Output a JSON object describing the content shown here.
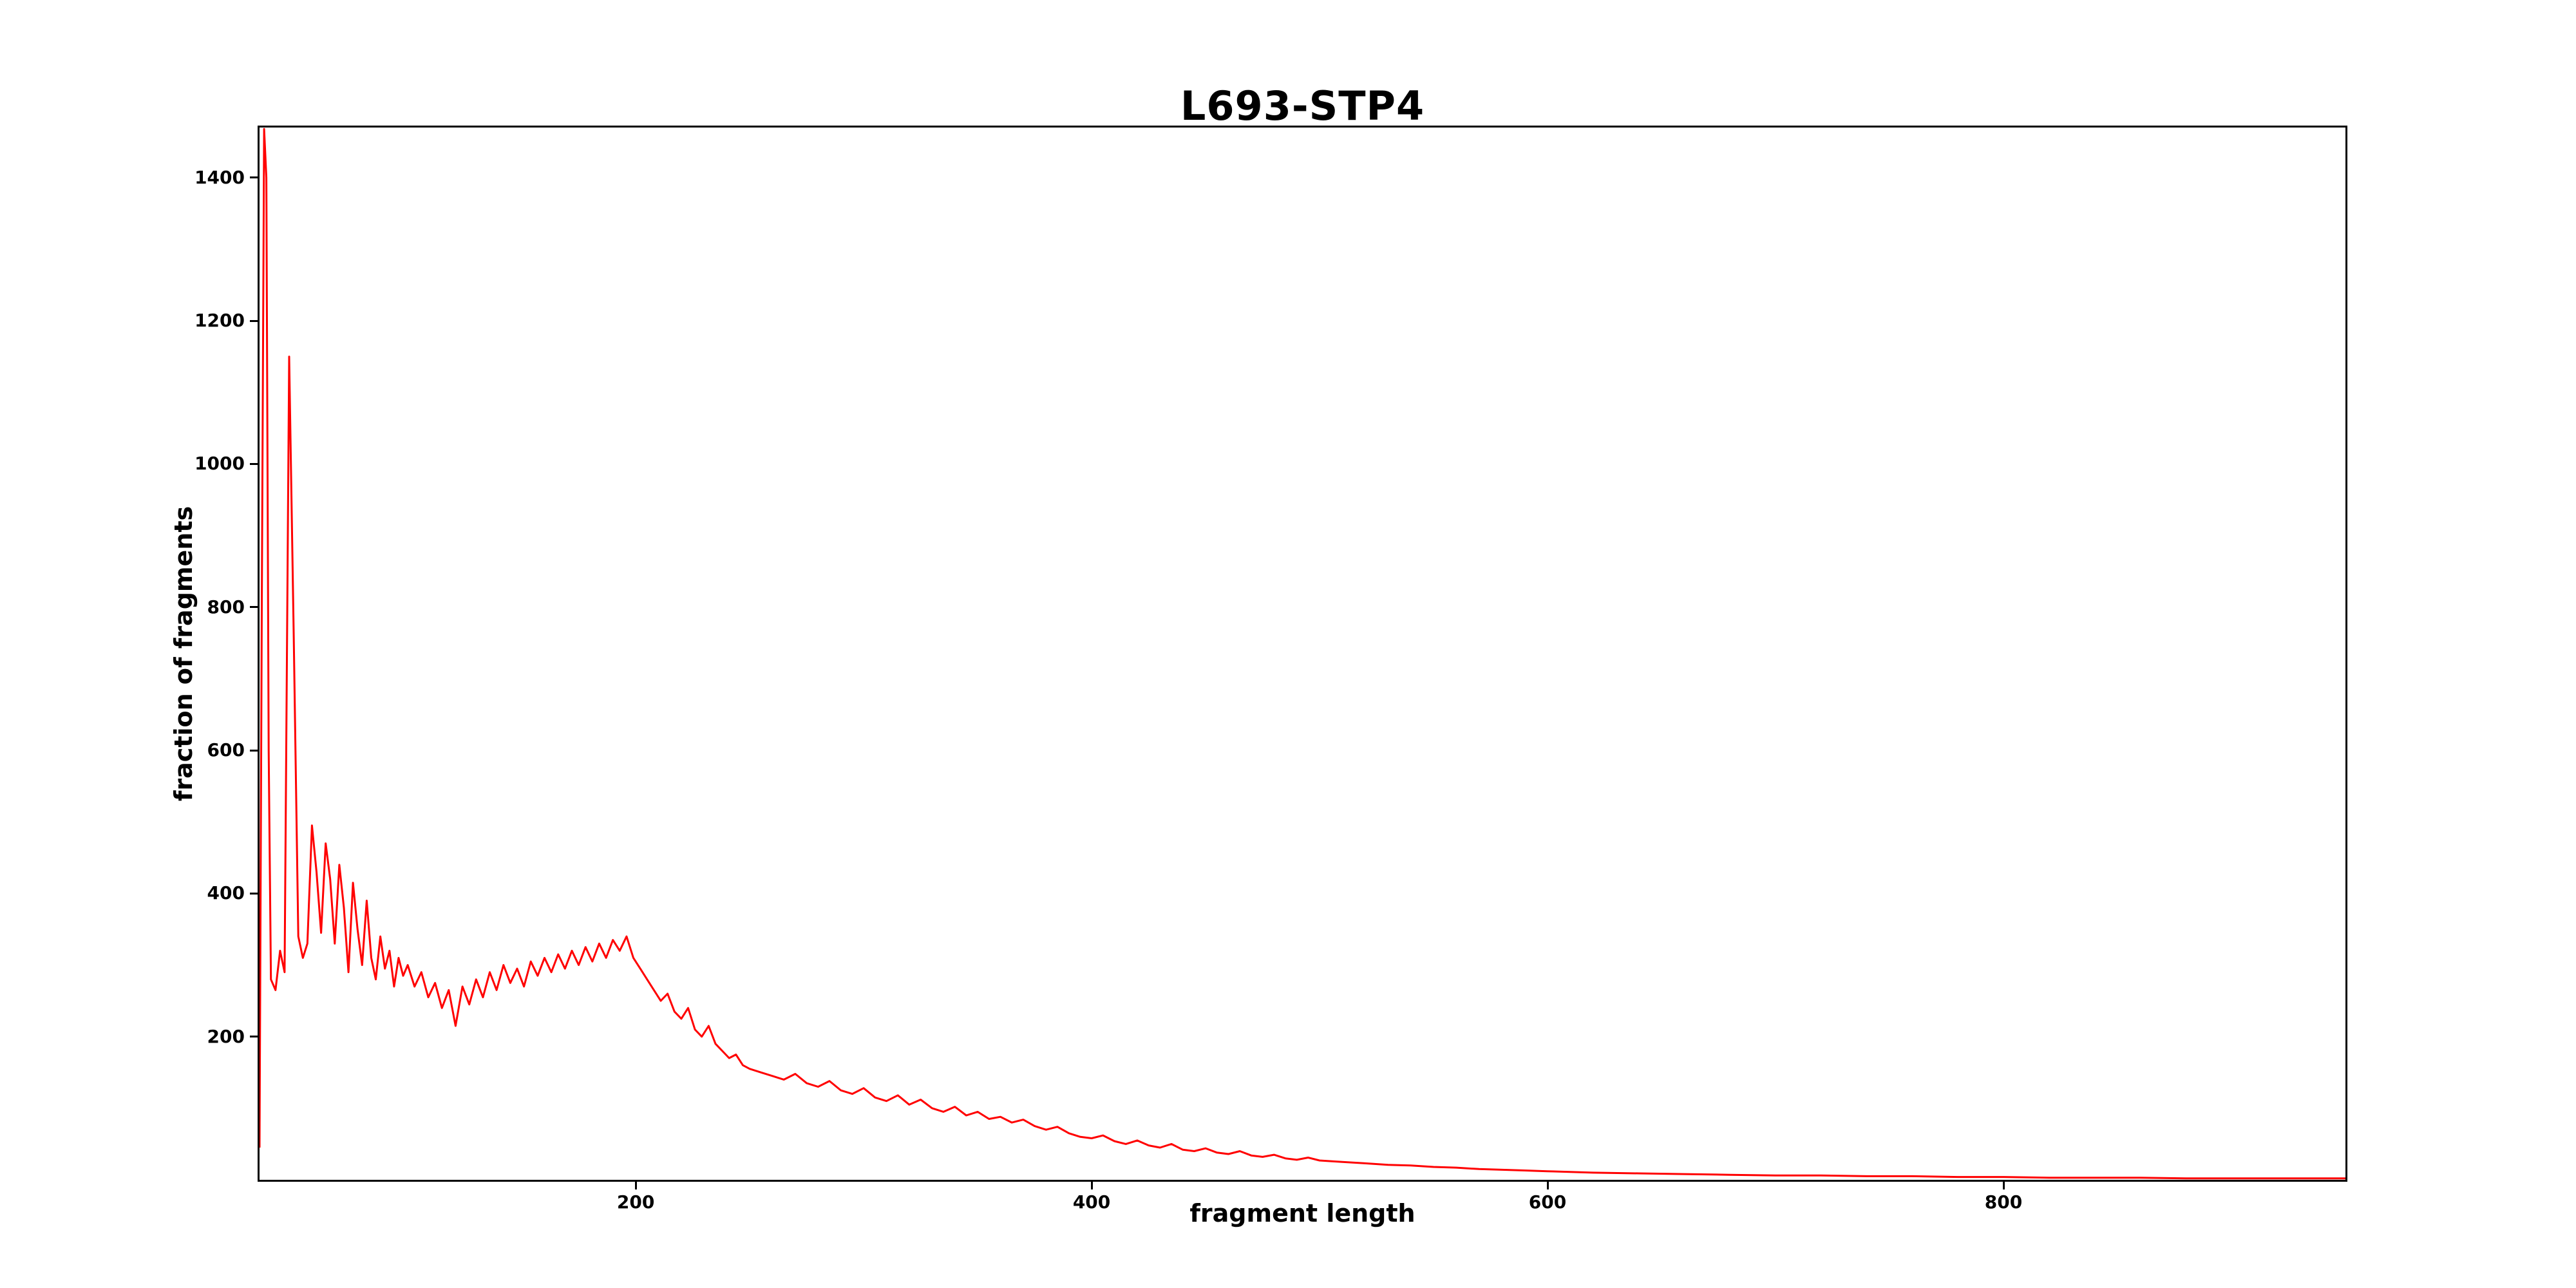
{
  "chart_data": {
    "type": "line",
    "title": "L693-STP4",
    "xlabel": "fragment length",
    "ylabel": "fraction of fragments",
    "xlim": [
      35,
      950
    ],
    "ylim": [
      0,
      1470
    ],
    "xticks": [
      200,
      400,
      600,
      800
    ],
    "yticks": [
      200,
      400,
      600,
      800,
      1000,
      1200,
      1400
    ],
    "grid": false,
    "legend": null,
    "line_color": "#ff0000",
    "points": [
      [
        35,
        45
      ],
      [
        36,
        800
      ],
      [
        37,
        1468
      ],
      [
        38,
        1400
      ],
      [
        39,
        600
      ],
      [
        40,
        280
      ],
      [
        42,
        265
      ],
      [
        44,
        320
      ],
      [
        46,
        290
      ],
      [
        48,
        1150
      ],
      [
        50,
        760
      ],
      [
        52,
        340
      ],
      [
        54,
        310
      ],
      [
        56,
        330
      ],
      [
        58,
        495
      ],
      [
        60,
        430
      ],
      [
        62,
        345
      ],
      [
        64,
        470
      ],
      [
        66,
        420
      ],
      [
        68,
        330
      ],
      [
        70,
        440
      ],
      [
        72,
        380
      ],
      [
        74,
        290
      ],
      [
        76,
        415
      ],
      [
        78,
        350
      ],
      [
        80,
        300
      ],
      [
        82,
        390
      ],
      [
        84,
        310
      ],
      [
        86,
        280
      ],
      [
        88,
        340
      ],
      [
        90,
        295
      ],
      [
        92,
        320
      ],
      [
        94,
        270
      ],
      [
        96,
        310
      ],
      [
        98,
        285
      ],
      [
        100,
        300
      ],
      [
        103,
        270
      ],
      [
        106,
        290
      ],
      [
        109,
        255
      ],
      [
        112,
        275
      ],
      [
        115,
        240
      ],
      [
        118,
        265
      ],
      [
        121,
        215
      ],
      [
        124,
        270
      ],
      [
        127,
        245
      ],
      [
        130,
        280
      ],
      [
        133,
        255
      ],
      [
        136,
        290
      ],
      [
        139,
        265
      ],
      [
        142,
        300
      ],
      [
        145,
        275
      ],
      [
        148,
        295
      ],
      [
        151,
        270
      ],
      [
        154,
        305
      ],
      [
        157,
        285
      ],
      [
        160,
        310
      ],
      [
        163,
        290
      ],
      [
        166,
        315
      ],
      [
        169,
        295
      ],
      [
        172,
        320
      ],
      [
        175,
        300
      ],
      [
        178,
        325
      ],
      [
        181,
        305
      ],
      [
        184,
        330
      ],
      [
        187,
        310
      ],
      [
        190,
        335
      ],
      [
        193,
        320
      ],
      [
        196,
        340
      ],
      [
        199,
        310
      ],
      [
        202,
        295
      ],
      [
        205,
        280
      ],
      [
        208,
        265
      ],
      [
        211,
        250
      ],
      [
        214,
        260
      ],
      [
        217,
        235
      ],
      [
        220,
        225
      ],
      [
        223,
        240
      ],
      [
        226,
        210
      ],
      [
        229,
        200
      ],
      [
        232,
        215
      ],
      [
        235,
        190
      ],
      [
        238,
        180
      ],
      [
        241,
        170
      ],
      [
        244,
        175
      ],
      [
        247,
        160
      ],
      [
        250,
        155
      ],
      [
        255,
        150
      ],
      [
        260,
        145
      ],
      [
        265,
        140
      ],
      [
        270,
        148
      ],
      [
        275,
        135
      ],
      [
        280,
        130
      ],
      [
        285,
        138
      ],
      [
        290,
        125
      ],
      [
        295,
        120
      ],
      [
        300,
        128
      ],
      [
        305,
        115
      ],
      [
        310,
        110
      ],
      [
        315,
        118
      ],
      [
        320,
        105
      ],
      [
        325,
        112
      ],
      [
        330,
        100
      ],
      [
        335,
        95
      ],
      [
        340,
        102
      ],
      [
        345,
        90
      ],
      [
        350,
        95
      ],
      [
        355,
        85
      ],
      [
        360,
        88
      ],
      [
        365,
        80
      ],
      [
        370,
        84
      ],
      [
        375,
        75
      ],
      [
        380,
        70
      ],
      [
        385,
        74
      ],
      [
        390,
        65
      ],
      [
        395,
        60
      ],
      [
        400,
        58
      ],
      [
        405,
        62
      ],
      [
        410,
        54
      ],
      [
        415,
        50
      ],
      [
        420,
        55
      ],
      [
        425,
        48
      ],
      [
        430,
        45
      ],
      [
        435,
        50
      ],
      [
        440,
        42
      ],
      [
        445,
        40
      ],
      [
        450,
        44
      ],
      [
        455,
        38
      ],
      [
        460,
        36
      ],
      [
        465,
        40
      ],
      [
        470,
        34
      ],
      [
        475,
        32
      ],
      [
        480,
        35
      ],
      [
        485,
        30
      ],
      [
        490,
        28
      ],
      [
        495,
        31
      ],
      [
        500,
        27
      ],
      [
        510,
        25
      ],
      [
        520,
        23
      ],
      [
        530,
        21
      ],
      [
        540,
        20
      ],
      [
        550,
        18
      ],
      [
        560,
        17
      ],
      [
        570,
        15
      ],
      [
        580,
        14
      ],
      [
        590,
        13
      ],
      [
        600,
        12
      ],
      [
        620,
        10
      ],
      [
        640,
        9
      ],
      [
        660,
        8
      ],
      [
        680,
        7
      ],
      [
        700,
        6
      ],
      [
        720,
        6
      ],
      [
        740,
        5
      ],
      [
        760,
        5
      ],
      [
        780,
        4
      ],
      [
        800,
        4
      ],
      [
        820,
        3
      ],
      [
        840,
        3
      ],
      [
        860,
        3
      ],
      [
        880,
        2
      ],
      [
        900,
        2
      ],
      [
        920,
        2
      ],
      [
        940,
        2
      ],
      [
        950,
        2
      ]
    ]
  }
}
